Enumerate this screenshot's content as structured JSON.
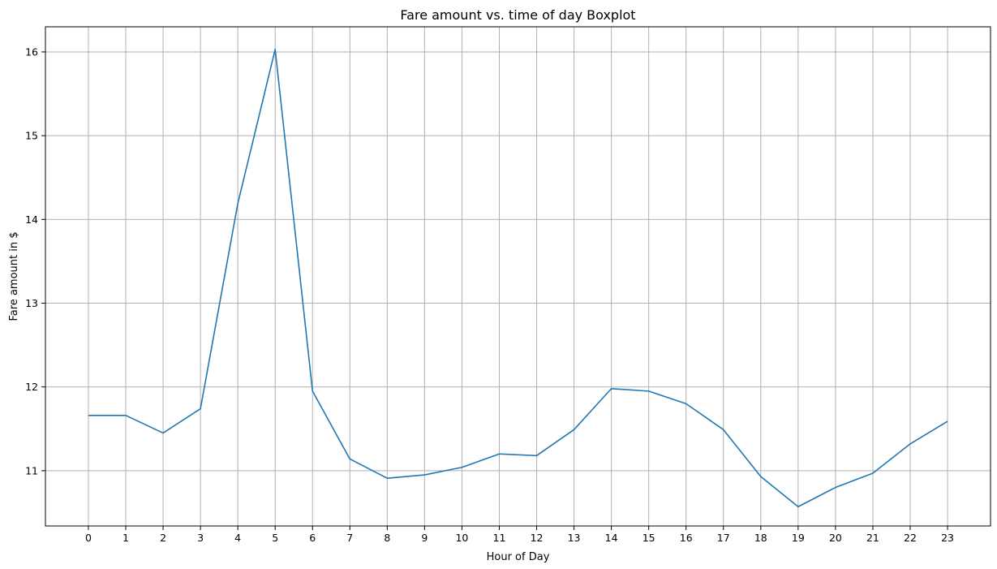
{
  "chart_data": {
    "type": "line",
    "title": "Fare amount vs. time of day Boxplot",
    "xlabel": "Hour of Day",
    "ylabel": "Fare amount in $",
    "x": [
      0,
      1,
      2,
      3,
      4,
      5,
      6,
      7,
      8,
      9,
      10,
      11,
      12,
      13,
      14,
      15,
      16,
      17,
      18,
      19,
      20,
      21,
      22,
      23
    ],
    "x_tick_labels": [
      "0",
      "1",
      "2",
      "3",
      "4",
      "5",
      "6",
      "7",
      "8",
      "9",
      "10",
      "11",
      "12",
      "13",
      "14",
      "15",
      "16",
      "17",
      "18",
      "19",
      "20",
      "21",
      "22",
      "23"
    ],
    "y_ticks": [
      11,
      12,
      13,
      14,
      15,
      16
    ],
    "y_tick_labels": [
      "11",
      "12",
      "13",
      "14",
      "15",
      "16"
    ],
    "xlim": [
      -1.15,
      24.15
    ],
    "ylim": [
      10.34,
      16.3
    ],
    "grid": true,
    "series": [
      {
        "color": "#1f77b4",
        "values": [
          11.66,
          11.66,
          11.45,
          11.74,
          14.19,
          16.03,
          11.95,
          11.14,
          10.91,
          10.95,
          11.04,
          11.2,
          11.18,
          11.49,
          11.98,
          11.95,
          11.8,
          11.49,
          10.93,
          10.57,
          10.8,
          10.97,
          11.32,
          11.59
        ]
      }
    ]
  }
}
